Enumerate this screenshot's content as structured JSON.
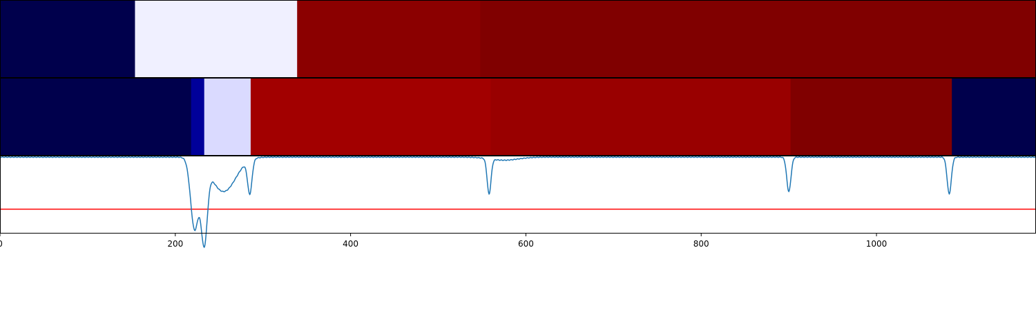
{
  "chart_data": {
    "type": "segmentation-timeline",
    "xlim": [
      0,
      1182
    ],
    "x_ticks": [
      0,
      200,
      400,
      600,
      800,
      1000
    ],
    "x_tick_labels": [
      "0",
      "200",
      "400",
      "600",
      "800",
      "1000"
    ],
    "segment_rows": [
      {
        "segments": [
          {
            "start": 0,
            "end": 154,
            "color": "#00004c"
          },
          {
            "start": 154,
            "end": 339,
            "color": "#f0f0ff"
          },
          {
            "start": 339,
            "end": 548,
            "color": "#8b0000"
          },
          {
            "start": 548,
            "end": 1182,
            "color": "#800000"
          }
        ]
      },
      {
        "segments": [
          {
            "start": 0,
            "end": 218,
            "color": "#00004c"
          },
          {
            "start": 218,
            "end": 233,
            "color": "#00009a"
          },
          {
            "start": 233,
            "end": 286,
            "color": "#dadaff"
          },
          {
            "start": 286,
            "end": 560,
            "color": "#a20000"
          },
          {
            "start": 560,
            "end": 902,
            "color": "#990000"
          },
          {
            "start": 902,
            "end": 1086,
            "color": "#800000"
          },
          {
            "start": 1086,
            "end": 1182,
            "color": "#00004c"
          }
        ]
      }
    ],
    "signal": {
      "color": "#1f77b4",
      "ylim": [
        0,
        1
      ],
      "baseline": 0.99,
      "dips": [
        {
          "center": 222,
          "depth": 0.92,
          "width": 4.5
        },
        {
          "center": 233,
          "depth": 1.0,
          "width": 3.5
        },
        {
          "center": 255,
          "depth": 0.45,
          "width": 14
        },
        {
          "center": 285,
          "depth": 0.44,
          "width": 2.5
        },
        {
          "center": 558,
          "depth": 0.46,
          "width": 2.2
        },
        {
          "center": 575,
          "depth": 0.04,
          "width": 16
        },
        {
          "center": 900,
          "depth": 0.45,
          "width": 2.4
        },
        {
          "center": 1083,
          "depth": 0.48,
          "width": 2.4
        }
      ],
      "threshold": 0.31,
      "threshold_color": "#ff0000"
    }
  }
}
